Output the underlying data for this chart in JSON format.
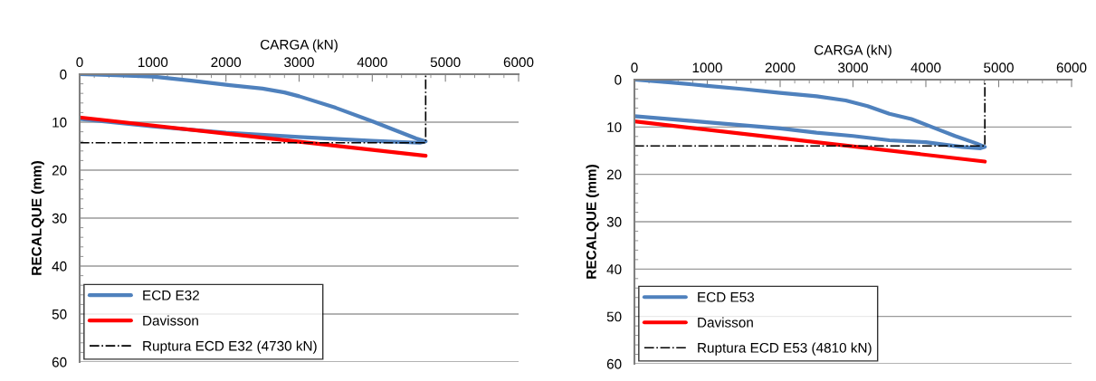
{
  "chart_data": [
    {
      "type": "line",
      "xlabel": "CARGA (kN)",
      "ylabel": "RECALQUE (mm)",
      "xlim": [
        0,
        6000
      ],
      "xticks": [
        0,
        1000,
        2000,
        3000,
        4000,
        5000,
        6000
      ],
      "ylim": [
        60,
        0
      ],
      "yticks": [
        0,
        10,
        20,
        30,
        40,
        50,
        60
      ],
      "grid": "y",
      "legend": "bottom left",
      "marker": "none",
      "series": [
        {
          "name": "ECD E32",
          "color": "#4f81bd",
          "line_style": "solid",
          "x": [
            0,
            500,
            1000,
            1500,
            2000,
            2500,
            2800,
            3000,
            3500,
            4000,
            4300,
            4600,
            4730,
            4650,
            4500,
            4000,
            3000,
            2000,
            1000,
            0
          ],
          "values": [
            0,
            0.2,
            0.5,
            1.3,
            2.2,
            3,
            3.8,
            4.6,
            7,
            9.8,
            11.6,
            13.4,
            14,
            14.3,
            14.2,
            13.9,
            13.1,
            12.2,
            10.9,
            9.3
          ]
        },
        {
          "name": "Davisson",
          "color": "#ff0000",
          "line_style": "solid",
          "x": [
            0,
            4730
          ],
          "values": [
            9,
            17
          ]
        },
        {
          "name": "Ruptura ECD E32 (4730 kN)",
          "color": "#000000",
          "line_style": "dashdot",
          "x": [
            0,
            4730,
            4730
          ],
          "values": [
            14.3,
            14.3,
            0
          ]
        }
      ]
    },
    {
      "type": "line",
      "xlabel": "CARGA (kN)",
      "ylabel": "RECALQUE (mm)",
      "xlim": [
        0,
        6000
      ],
      "xticks": [
        0,
        1000,
        2000,
        3000,
        4000,
        5000,
        6000
      ],
      "ylim": [
        60,
        0
      ],
      "yticks": [
        0,
        10,
        20,
        30,
        40,
        50,
        60
      ],
      "grid": "y",
      "legend": "bottom left",
      "marker": "none",
      "series": [
        {
          "name": "ECD E53",
          "color": "#4f81bd",
          "line_style": "solid",
          "x": [
            0,
            500,
            1000,
            1500,
            2000,
            2500,
            2900,
            3200,
            3500,
            3800,
            4100,
            4400,
            4700,
            4810,
            4750,
            4500,
            4000,
            3500,
            3000,
            2500,
            2000,
            1000,
            0
          ],
          "values": [
            0,
            0.6,
            1.3,
            2,
            2.8,
            3.5,
            4.4,
            5.6,
            7.2,
            8.3,
            10.1,
            11.9,
            13.5,
            14.2,
            14.5,
            14.2,
            13.2,
            12.8,
            11.9,
            11.2,
            10.3,
            9,
            7.7
          ]
        },
        {
          "name": "Davisson",
          "color": "#ff0000",
          "line_style": "solid",
          "x": [
            0,
            4810
          ],
          "values": [
            8.8,
            17.3
          ]
        },
        {
          "name": "Ruptura ECD E53 (4810 kN)",
          "color": "#000000",
          "line_style": "dashdot",
          "x": [
            0,
            4810,
            4810
          ],
          "values": [
            14,
            14,
            0
          ]
        }
      ]
    }
  ]
}
